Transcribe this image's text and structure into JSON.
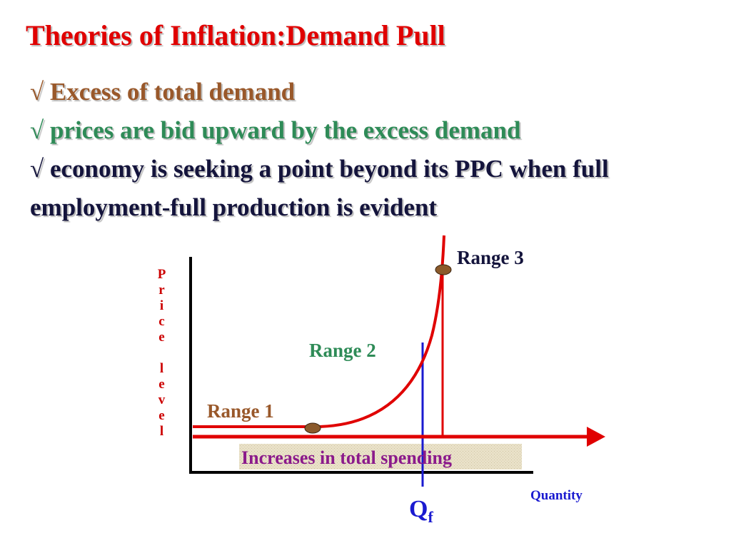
{
  "title": "Theories of Inflation:Demand Pull",
  "bullets": [
    "√ Excess of total demand",
    "√ prices are bid upward by the excess demand",
    "√ economy is seeking a point beyond its PPC when full employment-full production is evident"
  ],
  "diagram": {
    "y_axis_label": "Price level",
    "x_axis_label": "Quantity",
    "ranges": [
      "Range 1",
      "Range 2",
      "Range 3"
    ],
    "arrow_label": "Increases in total spending",
    "qf": {
      "main": "Q",
      "sub": "f"
    }
  }
}
